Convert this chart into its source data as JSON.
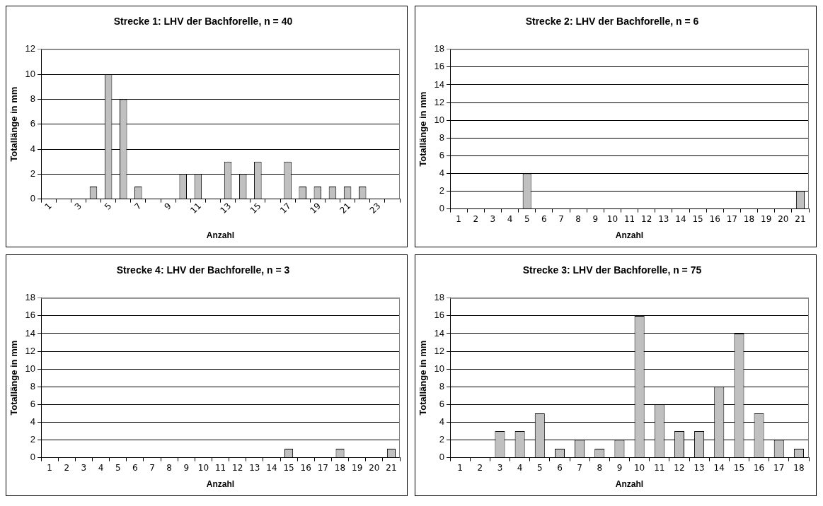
{
  "chart_data": [
    {
      "type": "bar",
      "title": "Strecke 1: LHV der Bachforelle, n = 40",
      "xlabel": "Anzahl",
      "ylabel": "Totallänge in mm",
      "categories": [
        "1",
        null,
        "3",
        null,
        "5",
        null,
        "7",
        null,
        "9",
        null,
        "11",
        null,
        "13",
        null,
        "15",
        null,
        "17",
        null,
        "19",
        null,
        "21",
        null,
        "23",
        null
      ],
      "values": [
        0,
        0,
        0,
        1,
        10,
        8,
        1,
        0,
        0,
        2,
        2,
        0,
        3,
        2,
        3,
        0,
        3,
        1,
        1,
        1,
        1,
        1,
        0,
        0
      ],
      "color": "#c0c0c0",
      "ylim": [
        0,
        12
      ],
      "yticks": [
        0,
        2,
        4,
        6,
        8,
        10,
        12
      ],
      "grid": "y",
      "legend": false
    },
    {
      "type": "bar",
      "title": "Strecke 2: LHV der Bachforelle, n = 6",
      "xlabel": "Anzahl",
      "ylabel": "Totallänge in mm",
      "categories": [
        "1",
        "2",
        "3",
        "4",
        "5",
        "6",
        "7",
        "8",
        "9",
        "10",
        "11",
        "12",
        "13",
        "14",
        "15",
        "16",
        "17",
        "18",
        "19",
        "20",
        "21"
      ],
      "values": [
        0,
        0,
        0,
        0,
        4,
        0,
        0,
        0,
        0,
        0,
        0,
        0,
        0,
        0,
        0,
        0,
        0,
        0,
        0,
        0,
        2
      ],
      "color": "#c0c0c0",
      "ylim": [
        0,
        18
      ],
      "yticks": [
        0,
        2,
        4,
        6,
        8,
        10,
        12,
        14,
        16,
        18
      ],
      "grid": "y",
      "legend": false
    },
    {
      "type": "bar",
      "title": "Strecke 4: LHV der Bachforelle, n = 3",
      "xlabel": "Anzahl",
      "ylabel": "Totallänge in mm",
      "categories": [
        "1",
        "2",
        "3",
        "4",
        "5",
        "6",
        "7",
        "8",
        "9",
        "10",
        "11",
        "12",
        "13",
        "14",
        "15",
        "16",
        "17",
        "18",
        "19",
        "20",
        "21"
      ],
      "values": [
        0,
        0,
        0,
        0,
        0,
        0,
        0,
        0,
        0,
        0,
        0,
        0,
        0,
        0,
        1,
        0,
        0,
        1,
        0,
        0,
        1
      ],
      "color": "#c0c0c0",
      "ylim": [
        0,
        18
      ],
      "yticks": [
        0,
        2,
        4,
        6,
        8,
        10,
        12,
        14,
        16,
        18
      ],
      "grid": "y",
      "legend": false
    },
    {
      "type": "bar",
      "title": "Strecke 3: LHV der Bachforelle, n = 75",
      "xlabel": "Anzahl",
      "ylabel": "Totallänge in mm",
      "categories": [
        "1",
        "2",
        "3",
        "4",
        "5",
        "6",
        "7",
        "8",
        "9",
        "10",
        "11",
        "12",
        "13",
        "14",
        "15",
        "16",
        "17",
        "18"
      ],
      "values": [
        0,
        0,
        3,
        3,
        5,
        1,
        2,
        1,
        2,
        16,
        6,
        3,
        3,
        8,
        14,
        5,
        2,
        1
      ],
      "color": "#c0c0c0",
      "ylim": [
        0,
        18
      ],
      "yticks": [
        0,
        2,
        4,
        6,
        8,
        10,
        12,
        14,
        16,
        18
      ],
      "grid": "y",
      "legend": false
    }
  ]
}
